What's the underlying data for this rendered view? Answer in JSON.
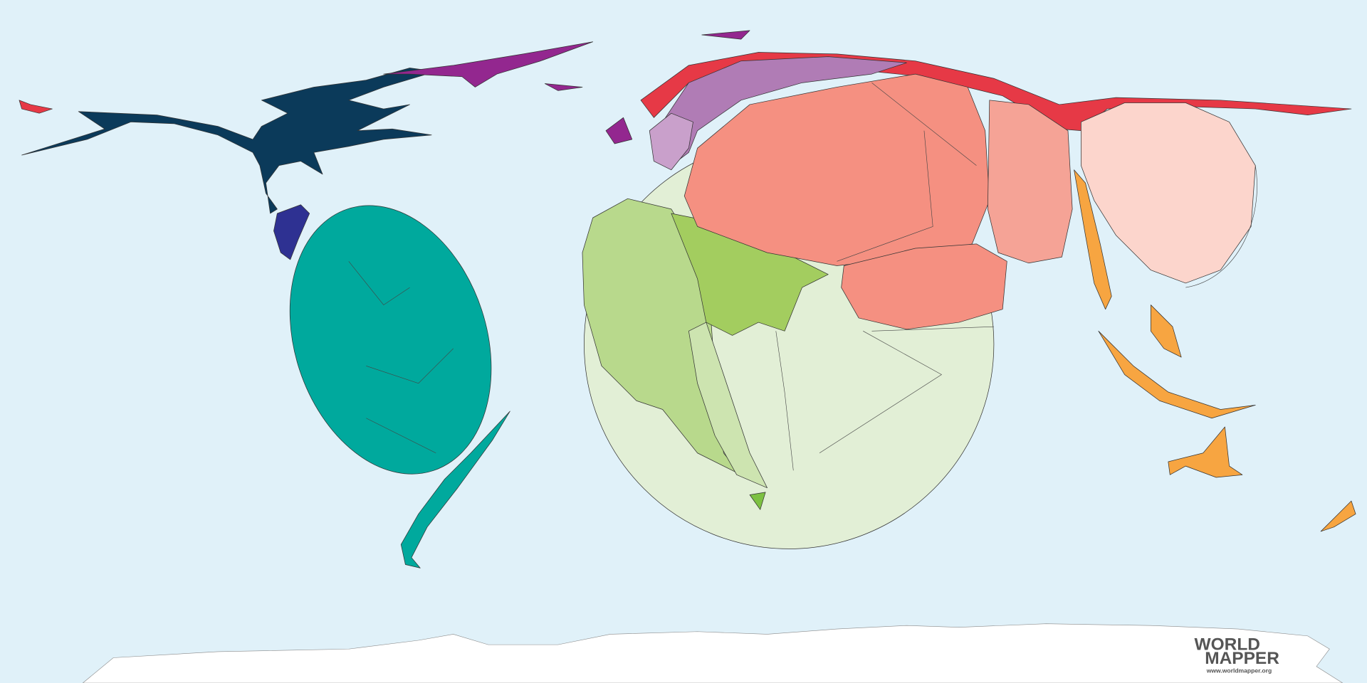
{
  "logo": {
    "line1": "WORLD",
    "line2": "MAPPER",
    "url": "www.worldmapper.org"
  }
}
